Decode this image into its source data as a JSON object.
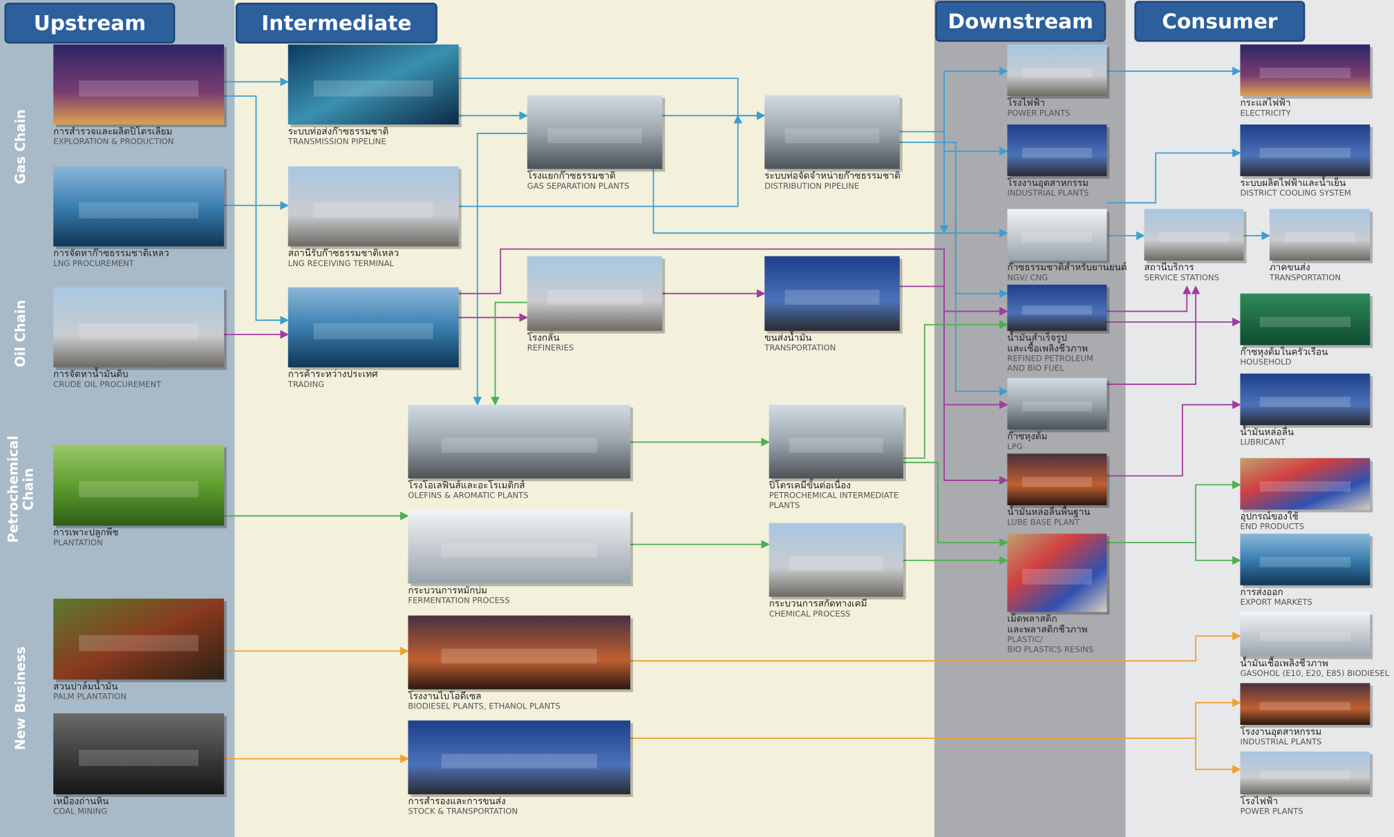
{
  "headers": [
    "Upstream",
    "Intermediate",
    "Downstream",
    "Consumer"
  ],
  "chains": [
    {
      "lines": [
        "Gas Chain"
      ]
    },
    {
      "lines": [
        "Oil Chain"
      ]
    },
    {
      "lines": [
        "Petrochemical",
        "Chain"
      ]
    },
    {
      "lines": [
        "New Business"
      ]
    }
  ],
  "nodes": [
    {
      "thai": [
        "การสำรวจและผลิตปิโตรเลียม"
      ],
      "english": [
        "EXPLORATION & PRODUCTION"
      ]
    },
    {
      "thai": [
        "การจัดหาก๊าซธรรมชาติเหลว"
      ],
      "english": [
        "LNG PROCUREMENT"
      ]
    },
    {
      "thai": [
        "การจัดหาน้ำมันดิบ"
      ],
      "english": [
        "CRUDE OIL PROCUREMENT"
      ]
    },
    {
      "thai": [
        "การเพาะปลูกพืช"
      ],
      "english": [
        "PLANTATION"
      ]
    },
    {
      "thai": [
        "สวนปาล์มน้ำมัน"
      ],
      "english": [
        "PALM PLANTATION"
      ]
    },
    {
      "thai": [
        "เหมืองถ่านหิน"
      ],
      "english": [
        "COAL MINING"
      ]
    },
    {
      "thai": [
        "ระบบท่อส่งก๊าซธรรมชาติ"
      ],
      "english": [
        "TRANSMISSION PIPELINE"
      ]
    },
    {
      "thai": [
        "สถานีรับก๊าซธรรมชาติเหลว"
      ],
      "english": [
        "LNG RECEIVING TERMINAL"
      ]
    },
    {
      "thai": [
        "การค้าระหว่างประเทศ"
      ],
      "english": [
        "TRADING"
      ]
    },
    {
      "thai": [
        "โรงแยกก๊าซธรรมชาติ"
      ],
      "english": [
        "GAS SEPARATION PLANTS"
      ]
    },
    {
      "thai": [
        "ระบบท่อจัดจำหน่ายก๊าซธรรมชาติ"
      ],
      "english": [
        "DISTRIBUTION PIPELINE"
      ]
    },
    {
      "thai": [
        "โรงกลั่น"
      ],
      "english": [
        "REFINERIES"
      ]
    },
    {
      "thai": [
        "ขนส่งน้ำมัน"
      ],
      "english": [
        "TRANSPORTATION"
      ]
    },
    {
      "thai": [
        "โรงโอเลฟินส์และอะโรเมติกส์"
      ],
      "english": [
        "OLEFINS & AROMATIC PLANTS"
      ]
    },
    {
      "thai": [
        "กระบวนการหมักบ่ม"
      ],
      "english": [
        "FERMENTATION PROCESS"
      ]
    },
    {
      "thai": [
        "โรงงานไบโอดีเซล"
      ],
      "english": [
        "BIODIESEL PLANTS, ETHANOL PLANTS"
      ]
    },
    {
      "thai": [
        "การสำรองและการขนส่ง"
      ],
      "english": [
        "STOCK & TRANSPORTATION"
      ]
    },
    {
      "thai": [
        "ปิโตรเคมีขั้นต่อเนื่อง"
      ],
      "english": [
        "PETROCHEMICAL INTERMEDIATE",
        "PLANTS"
      ]
    },
    {
      "thai": [
        "กระบวนการสกัดทางเคมี"
      ],
      "english": [
        "CHEMICAL PROCESS"
      ]
    },
    {
      "thai": [
        "โรงไฟฟ้า"
      ],
      "english": [
        "POWER PLANTS"
      ]
    },
    {
      "thai": [
        "โรงงานอุตสาหกรรม"
      ],
      "english": [
        "INDUSTRIAL PLANTS"
      ]
    },
    {
      "thai": [
        "ก๊าซธรรมชาติสำหรับยานยนต์"
      ],
      "english": [
        "NGV/ CNG"
      ]
    },
    {
      "thai": [
        "น้ำมันสำเร็จรูป",
        "และเชื้อเพลิงชีวภาพ"
      ],
      "english": [
        "REFINED PETROLEUM",
        "AND BIO FUEL"
      ]
    },
    {
      "thai": [
        "ก๊าซหุงต้ม"
      ],
      "english": [
        "LPG"
      ]
    },
    {
      "thai": [
        "น้ำมันหล่อลื่นพื้นฐาน"
      ],
      "english": [
        "LUBE BASE PLANT"
      ]
    },
    {
      "thai": [
        "เม็ดพลาสติก",
        "และพลาสติกชีวภาพ"
      ],
      "english": [
        "PLASTIC/",
        "BIO PLASTICS RESINS"
      ]
    },
    {
      "thai": [
        "สถานีบริการ"
      ],
      "english": [
        "SERVICE STATIONS"
      ]
    },
    {
      "thai": [
        "กระแสไฟฟ้า"
      ],
      "english": [
        "ELECTRICITY"
      ]
    },
    {
      "thai": [
        "ระบบผลิตไฟฟ้าและน้ำเย็น"
      ],
      "english": [
        "DISTRICT COOLING SYSTEM"
      ]
    },
    {
      "thai": [
        "ภาคขนส่ง"
      ],
      "english": [
        "TRANSPORTATION"
      ]
    },
    {
      "thai": [
        "ก๊าซหุงต้มในครัวเรือน"
      ],
      "english": [
        "HOUSEHOLD"
      ]
    },
    {
      "thai": [
        "น้ำมันหล่อลื่น"
      ],
      "english": [
        "LUBRICANT"
      ]
    },
    {
      "thai": [
        "อุปกรณ์ของใช้"
      ],
      "english": [
        "END PRODUCTS"
      ]
    },
    {
      "thai": [
        "การส่งออก"
      ],
      "english": [
        "EXPORT MARKETS"
      ]
    },
    {
      "thai": [
        "น้ำมันเชื้อเพลิงชีวภาพ"
      ],
      "english": [
        "GASOHOL (E10, E20, E85) BIODIESEL"
      ]
    },
    {
      "thai": [
        "โรงงานอุตสาหกรรม"
      ],
      "english": [
        "INDUSTRIAL PLANTS"
      ]
    },
    {
      "thai": [
        "โรงไฟฟ้า"
      ],
      "english": [
        "POWER PLANTS"
      ]
    }
  ]
}
